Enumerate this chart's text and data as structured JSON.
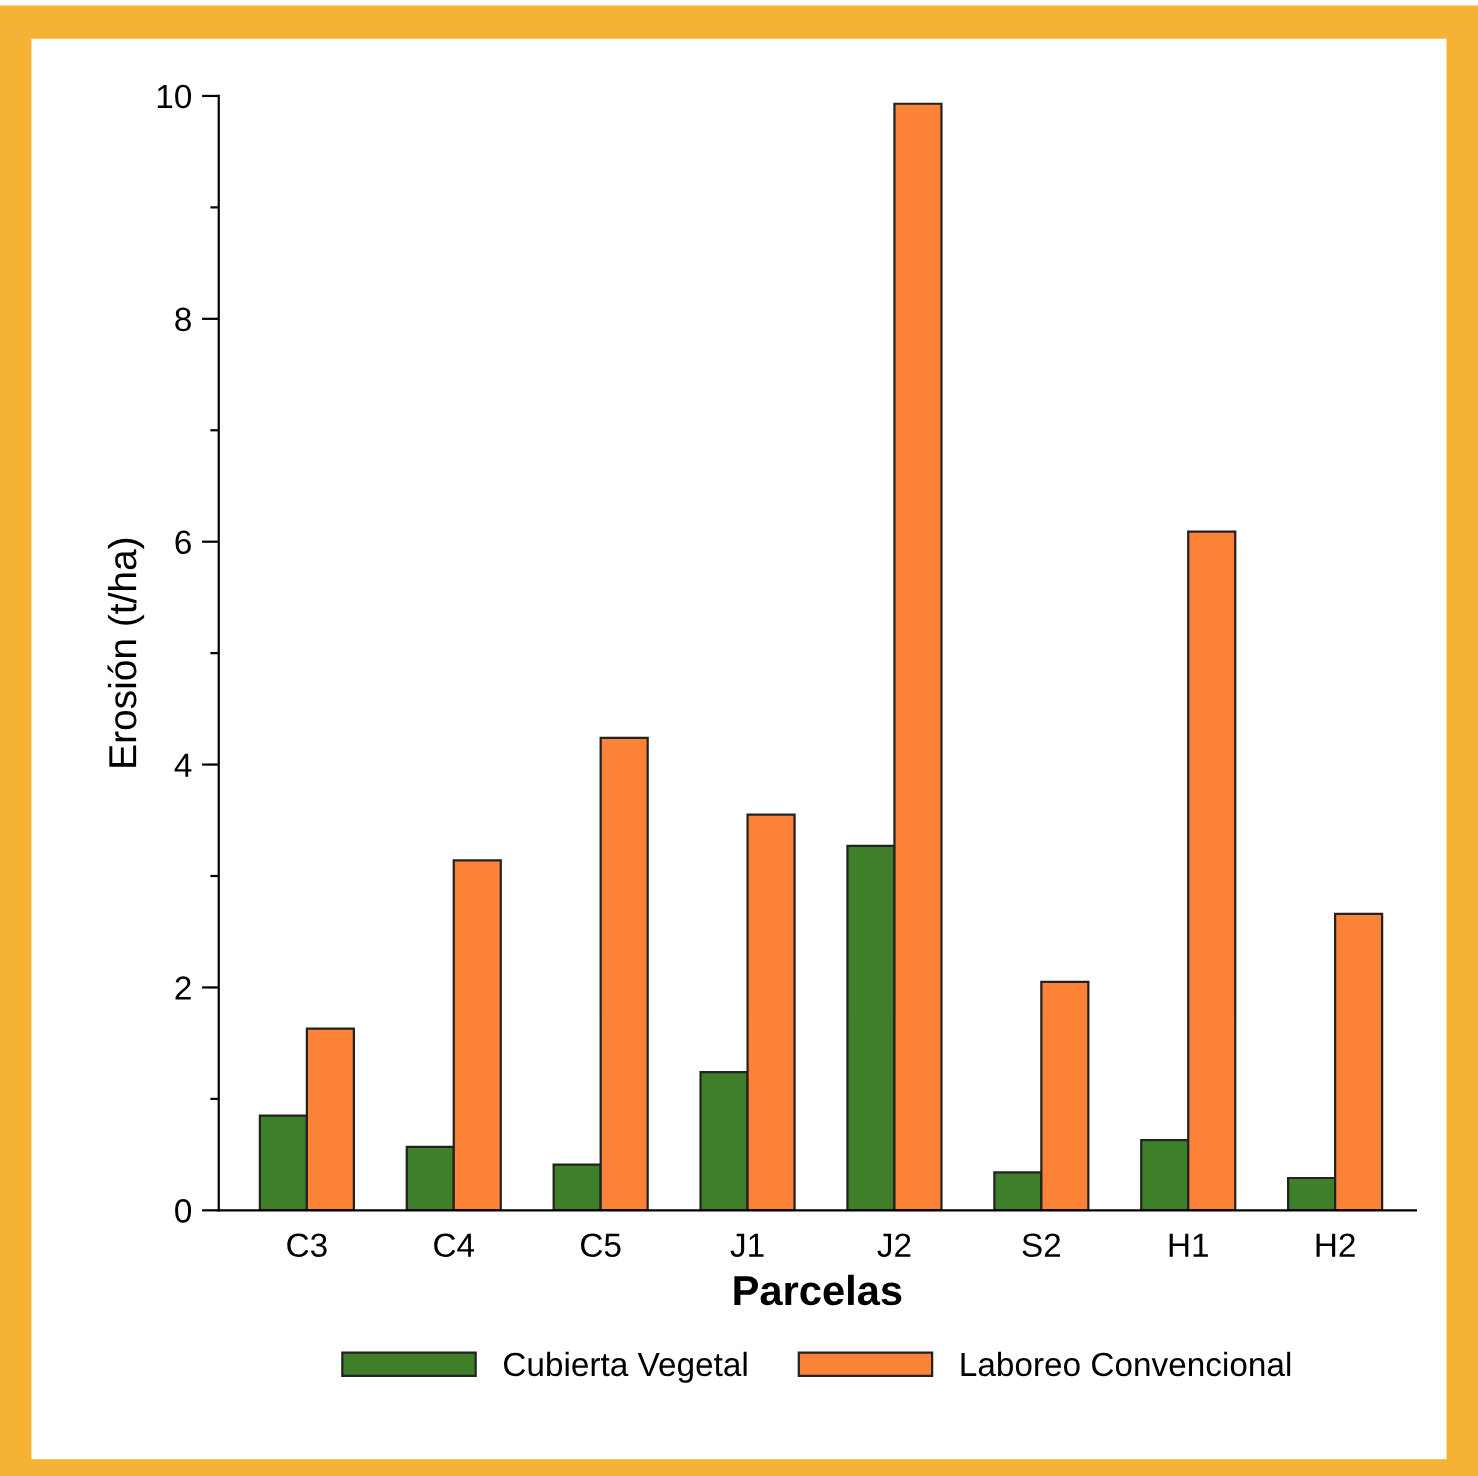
{
  "chart_data": {
    "type": "bar",
    "xlabel": "Parcelas",
    "ylabel": "Erosión (t/ha)",
    "categories": [
      "C3",
      "C4",
      "C5",
      "J1",
      "J2",
      "S2",
      "H1",
      "H2"
    ],
    "series": [
      {
        "name": "Cubierta Vegetal",
        "color": "#3f7f2a",
        "values": [
          0.85,
          0.57,
          0.41,
          1.24,
          3.27,
          0.34,
          0.63,
          0.29
        ]
      },
      {
        "name": "Laboreo Convencional",
        "color": "#fb8236",
        "values": [
          1.63,
          3.14,
          4.24,
          3.55,
          9.93,
          2.05,
          6.09,
          2.66
        ]
      }
    ],
    "ylim": [
      0,
      10
    ],
    "yticks": [
      0,
      {
        "value": 1,
        "label": null
      },
      2,
      {
        "value": 3,
        "label": null
      },
      4,
      {
        "value": 5,
        "label": null
      },
      6,
      {
        "value": 7,
        "label": null
      },
      8,
      {
        "value": 9,
        "label": null
      },
      10
    ],
    "grid": false,
    "legend": "bottom"
  }
}
